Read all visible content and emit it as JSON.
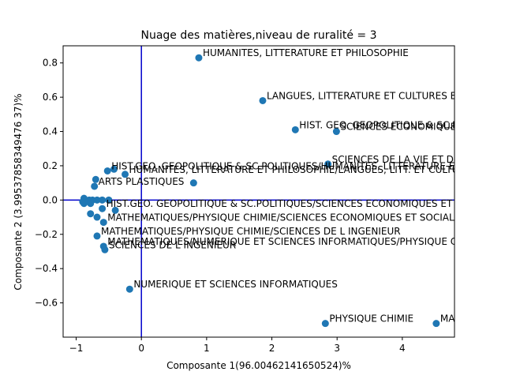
{
  "chart_data": {
    "type": "scatter",
    "title": "Nuage des matières,niveau de ruralité = 3",
    "xlabel": "Composante 1(96.00462141650524)%",
    "ylabel": "Composante 2 (3.99537858349476 37)%",
    "xlim": [
      -1.2,
      4.8
    ],
    "ylim": [
      -0.8,
      0.9
    ],
    "xticks": [
      -1,
      0,
      1,
      2,
      3,
      4
    ],
    "yticks": [
      -0.6,
      -0.4,
      -0.2,
      0.0,
      0.2,
      0.4,
      0.6,
      0.8
    ],
    "xtick_labels": [
      "−1",
      "0",
      "1",
      "2",
      "3",
      "4"
    ],
    "ytick_labels": [
      "−0.6",
      "−0.4",
      "−0.2",
      "0.0",
      "0.2",
      "0.4",
      "0.6",
      "0.8"
    ],
    "reference_lines": {
      "x": 0,
      "y": 0,
      "color": "#0000cc"
    },
    "point_color": "#1f77b4",
    "grid": false,
    "points": [
      {
        "x": 0.88,
        "y": 0.83,
        "label": "HUMANITES, LITTERATURE ET PHILOSOPHIE"
      },
      {
        "x": 1.86,
        "y": 0.58,
        "label": "LANGUES, LITTERATURE ET CULTURES ETRANGERES ET REGIONALES"
      },
      {
        "x": 2.36,
        "y": 0.41,
        "label": "HIST. GEO. GEOPOLITIQUE & SC.POLITIQUES"
      },
      {
        "x": 2.99,
        "y": 0.4,
        "label": "SCIENCES ECONOMIQUES ET SOCIALES"
      },
      {
        "x": 2.86,
        "y": 0.21,
        "label": "SCIENCES DE LA VIE ET DE LA TERRE"
      },
      {
        "x": -0.52,
        "y": 0.17,
        "label": "HIST.GEO. GEOPOLITIQUE & SC.POLITIQUES/HUMANITES, LITTERATURE ET PHILOSOPHIE"
      },
      {
        "x": -0.42,
        "y": 0.18,
        "label": ""
      },
      {
        "x": -0.25,
        "y": 0.15,
        "label": "HUMANITES, LITTERATURE ET PHILOSOPHIE/LANGUES, LITT. ET CULTURES ETRANGERES"
      },
      {
        "x": -0.7,
        "y": 0.12,
        "label": ""
      },
      {
        "x": -0.72,
        "y": 0.08,
        "label": "ARTS PLASTIQUES"
      },
      {
        "x": 0.8,
        "y": 0.1,
        "label": ""
      },
      {
        "x": -0.88,
        "y": 0.01,
        "label": ""
      },
      {
        "x": -0.8,
        "y": 0.0,
        "label": ""
      },
      {
        "x": -0.75,
        "y": 0.0,
        "label": ""
      },
      {
        "x": -0.68,
        "y": 0.0,
        "label": ""
      },
      {
        "x": -0.6,
        "y": 0.0,
        "label": ""
      },
      {
        "x": -0.5,
        "y": 0.0,
        "label": ""
      },
      {
        "x": -0.9,
        "y": -0.01,
        "label": ""
      },
      {
        "x": -0.78,
        "y": -0.02,
        "label": ""
      },
      {
        "x": -0.88,
        "y": -0.02,
        "label": ""
      },
      {
        "x": -0.6,
        "y": -0.05,
        "label": "HIST.GEO. GEOPOLITIQUE & SC.POLITIQUES/SCIENCES ECONOMIQUES ET SOCIALES"
      },
      {
        "x": -0.4,
        "y": -0.06,
        "label": ""
      },
      {
        "x": -0.78,
        "y": -0.08,
        "label": ""
      },
      {
        "x": -0.68,
        "y": -0.1,
        "label": ""
      },
      {
        "x": -0.58,
        "y": -0.13,
        "label": "MATHEMATIQUES/PHYSIQUE CHIMIE/SCIENCES ECONOMIQUES ET SOCIALES"
      },
      {
        "x": -0.68,
        "y": -0.21,
        "label": "MATHEMATIQUES/PHYSIQUE CHIMIE/SCIENCES DE L INGENIEUR"
      },
      {
        "x": -0.58,
        "y": -0.27,
        "label": "MATHEMATIQUES/NUMERIQUE ET SCIENCES INFORMATIQUES/PHYSIQUE CHIMIE"
      },
      {
        "x": -0.56,
        "y": -0.29,
        "label": "SCIENCES DE L INGENIEUR"
      },
      {
        "x": -0.18,
        "y": -0.52,
        "label": "NUMERIQUE ET SCIENCES INFORMATIQUES"
      },
      {
        "x": 2.82,
        "y": -0.72,
        "label": "PHYSIQUE CHIMIE"
      },
      {
        "x": 4.52,
        "y": -0.72,
        "label": "MATHEMATIQUES"
      }
    ]
  }
}
